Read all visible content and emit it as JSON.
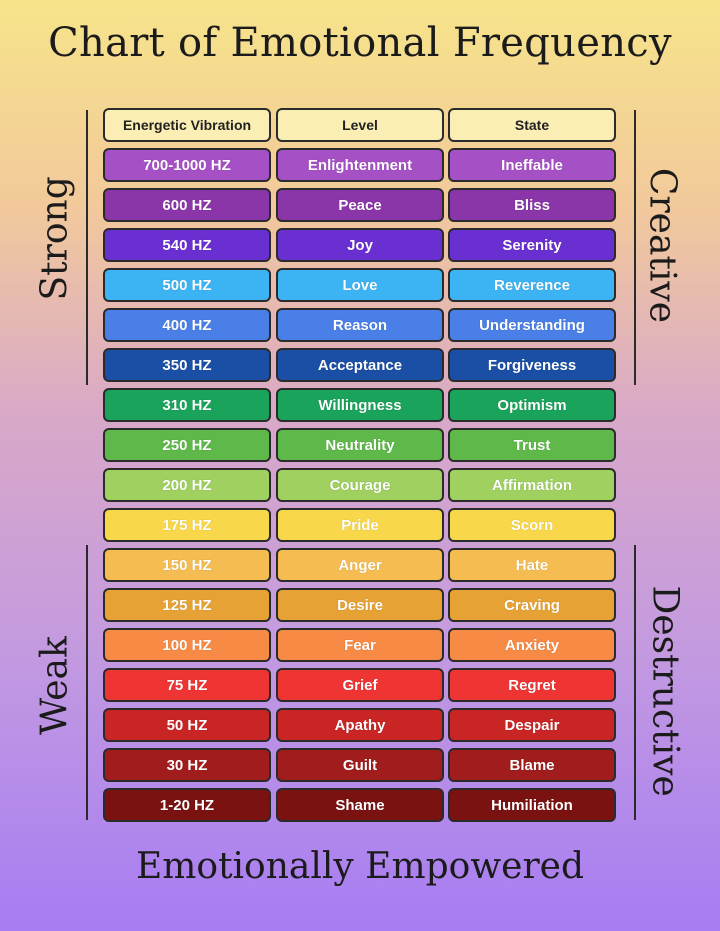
{
  "title": "Chart of Emotional Frequency",
  "footer": "Emotionally Empowered",
  "left_labels": {
    "top": "Strong",
    "bottom": "Weak"
  },
  "right_labels": {
    "top": "Creative",
    "bottom": "Destructive"
  },
  "chart_data": {
    "type": "table",
    "columns": [
      "Energetic Vibration",
      "Level",
      "State"
    ],
    "rows": [
      {
        "vibration": "700-1000 HZ",
        "level": "Enlightenment",
        "state": "Ineffable",
        "color": "#a650c6"
      },
      {
        "vibration": "600 HZ",
        "level": "Peace",
        "state": "Bliss",
        "color": "#8a35a8"
      },
      {
        "vibration": "540 HZ",
        "level": "Joy",
        "state": "Serenity",
        "color": "#6a2fd0"
      },
      {
        "vibration": "500 HZ",
        "level": "Love",
        "state": "Reverence",
        "color": "#3cb3f3"
      },
      {
        "vibration": "400 HZ",
        "level": "Reason",
        "state": "Understanding",
        "color": "#4a7fe8"
      },
      {
        "vibration": "350 HZ",
        "level": "Acceptance",
        "state": "Forgiveness",
        "color": "#1b4fa6"
      },
      {
        "vibration": "310 HZ",
        "level": "Willingness",
        "state": "Optimism",
        "color": "#1aa35a"
      },
      {
        "vibration": "250 HZ",
        "level": "Neutrality",
        "state": "Trust",
        "color": "#5fb84a"
      },
      {
        "vibration": "200 HZ",
        "level": "Courage",
        "state": "Affirmation",
        "color": "#9fd060"
      },
      {
        "vibration": "175 HZ",
        "level": "Pride",
        "state": "Scorn",
        "color": "#f8d84a"
      },
      {
        "vibration": "150 HZ",
        "level": "Anger",
        "state": "Hate",
        "color": "#f5bc52"
      },
      {
        "vibration": "125 HZ",
        "level": "Desire",
        "state": "Craving",
        "color": "#e6a235"
      },
      {
        "vibration": "100 HZ",
        "level": "Fear",
        "state": "Anxiety",
        "color": "#f78a45"
      },
      {
        "vibration": "75 HZ",
        "level": "Grief",
        "state": "Regret",
        "color": "#ef3434"
      },
      {
        "vibration": "50 HZ",
        "level": "Apathy",
        "state": "Despair",
        "color": "#c92525"
      },
      {
        "vibration": "30 HZ",
        "level": "Guilt",
        "state": "Blame",
        "color": "#a11d1d"
      },
      {
        "vibration": "1-20 HZ",
        "level": "Shame",
        "state": "Humiliation",
        "color": "#7a1212"
      }
    ]
  }
}
